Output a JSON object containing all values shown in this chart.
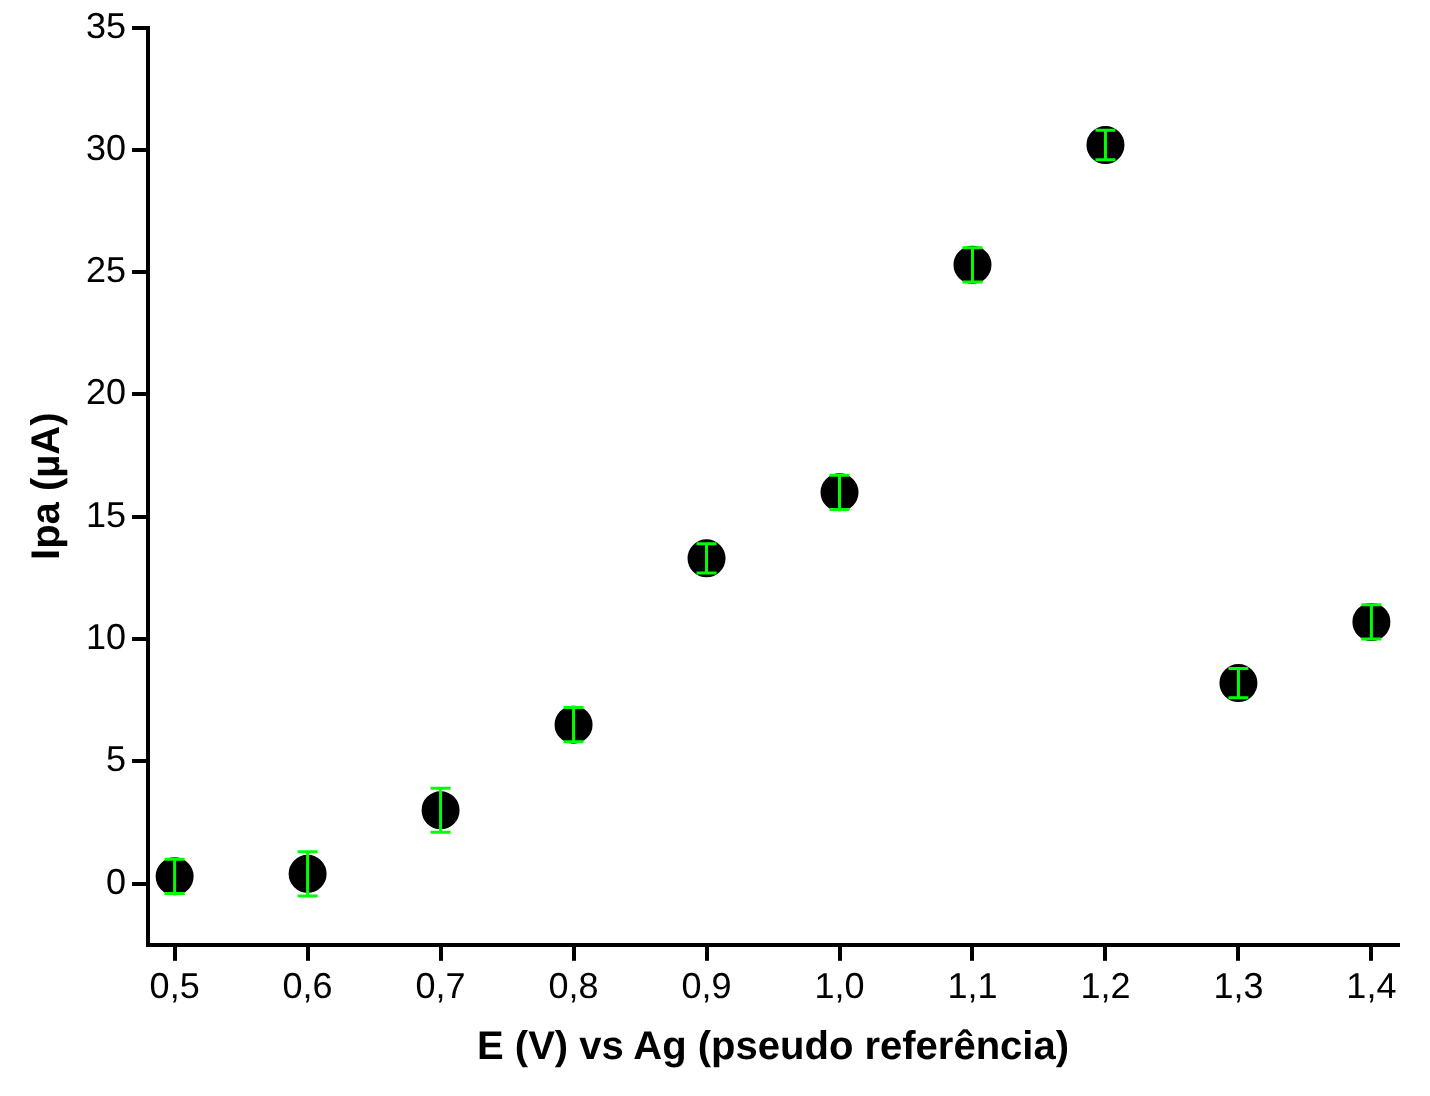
{
  "chart_data": {
    "type": "scatter",
    "xlabel": "E (V) vs Ag (pseudo referência)",
    "ylabel": "Ipa (µA)",
    "x": [
      0.5,
      0.6,
      0.7,
      0.8,
      0.9,
      1.0,
      1.1,
      1.2,
      1.3,
      1.4
    ],
    "values": [
      0.3,
      0.4,
      3.0,
      6.5,
      13.3,
      16.0,
      25.3,
      30.2,
      8.2,
      10.7
    ],
    "errors": [
      0.7,
      0.9,
      0.9,
      0.7,
      0.6,
      0.7,
      0.7,
      0.6,
      0.6,
      0.7
    ],
    "color": "#000000",
    "marker": "circle",
    "grid": false,
    "legend": false,
    "xlim": [
      0.48,
      1.42
    ],
    "ylim": [
      -2.5,
      35
    ],
    "xticks": [
      {
        "value": 0.5,
        "label": "0,5"
      },
      {
        "value": 0.6,
        "label": "0,6"
      },
      {
        "value": 0.7,
        "label": "0,7"
      },
      {
        "value": 0.8,
        "label": "0,8"
      },
      {
        "value": 0.9,
        "label": "0,9"
      },
      {
        "value": 1.0,
        "label": "1,0"
      },
      {
        "value": 1.1,
        "label": "1,1"
      },
      {
        "value": 1.2,
        "label": "1,2"
      },
      {
        "value": 1.3,
        "label": "1,3"
      },
      {
        "value": 1.4,
        "label": "1,4"
      }
    ],
    "yticks": [
      0,
      5,
      10,
      15,
      20,
      25,
      30,
      35
    ]
  }
}
